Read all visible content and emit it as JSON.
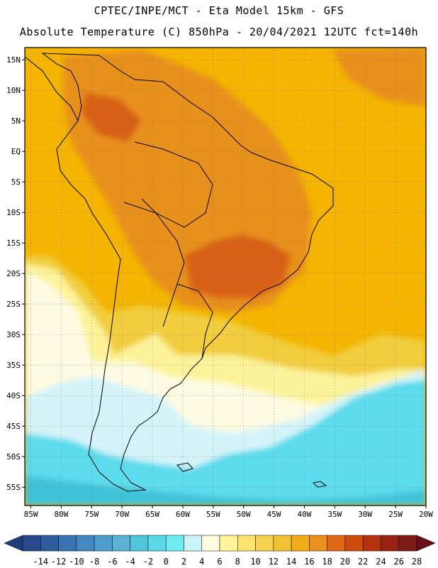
{
  "header": {
    "line1": "CPTEC/INPE/MCT -  Eta Model 15km - GFS",
    "line2": "Absolute Temperature (C) 850hPa - 20/04/2021 12UTC fct=140h"
  },
  "map": {
    "lat_labels": [
      "15N",
      "10N",
      "5N",
      "EQ",
      "5S",
      "10S",
      "15S",
      "20S",
      "25S",
      "30S",
      "35S",
      "40S",
      "45S",
      "50S",
      "55S"
    ],
    "lat_values": [
      15,
      10,
      5,
      0,
      -5,
      -10,
      -15,
      -20,
      -25,
      -30,
      -35,
      -40,
      -45,
      -50,
      -55
    ],
    "lon_labels": [
      "85W",
      "80W",
      "75W",
      "70W",
      "65W",
      "60W",
      "55W",
      "50W",
      "45W",
      "40W",
      "35W",
      "30W",
      "25W",
      "20W"
    ],
    "lon_values": [
      -85,
      -80,
      -75,
      -70,
      -65,
      -60,
      -55,
      -50,
      -45,
      -40,
      -35,
      -30,
      -25,
      -20
    ],
    "lon_range": [
      -86,
      -20
    ],
    "lat_range": [
      -58,
      17
    ],
    "colors": {
      "warm_base": "#f4b400",
      "warmer": "#e8901a",
      "hottest": "#d86018",
      "mild": "#f2cd3c",
      "pale_yellow": "#fdf39a",
      "cream": "#fffbe2",
      "ice": "#d4f4fa",
      "cyan": "#5cdcec",
      "teal": "#3fc2d8",
      "coast": "#000000",
      "grid": "#777777"
    }
  },
  "colorbar": {
    "labels": [
      "-14",
      "-12",
      "-10",
      "-8",
      "-6",
      "-4",
      "-2",
      "0",
      "2",
      "4",
      "6",
      "8",
      "10",
      "12",
      "14",
      "16",
      "18",
      "20",
      "22",
      "24",
      "26",
      "28"
    ],
    "colors": [
      "#264a8c",
      "#2e5d9e",
      "#3874b4",
      "#4288c2",
      "#4e9ecc",
      "#5cb0d6",
      "#4fc6dc",
      "#5ad8e8",
      "#6eecf4",
      "#cdf4fa",
      "#fffbe0",
      "#fff49a",
      "#fde470",
      "#f6d24e",
      "#f2c236",
      "#f0ad18",
      "#eb901c",
      "#e06a14",
      "#cf4c10",
      "#b4320e",
      "#962212",
      "#7c1c16"
    ],
    "low_cap_color": "#1f3c7a",
    "high_cap_color": "#6a0e1a"
  }
}
